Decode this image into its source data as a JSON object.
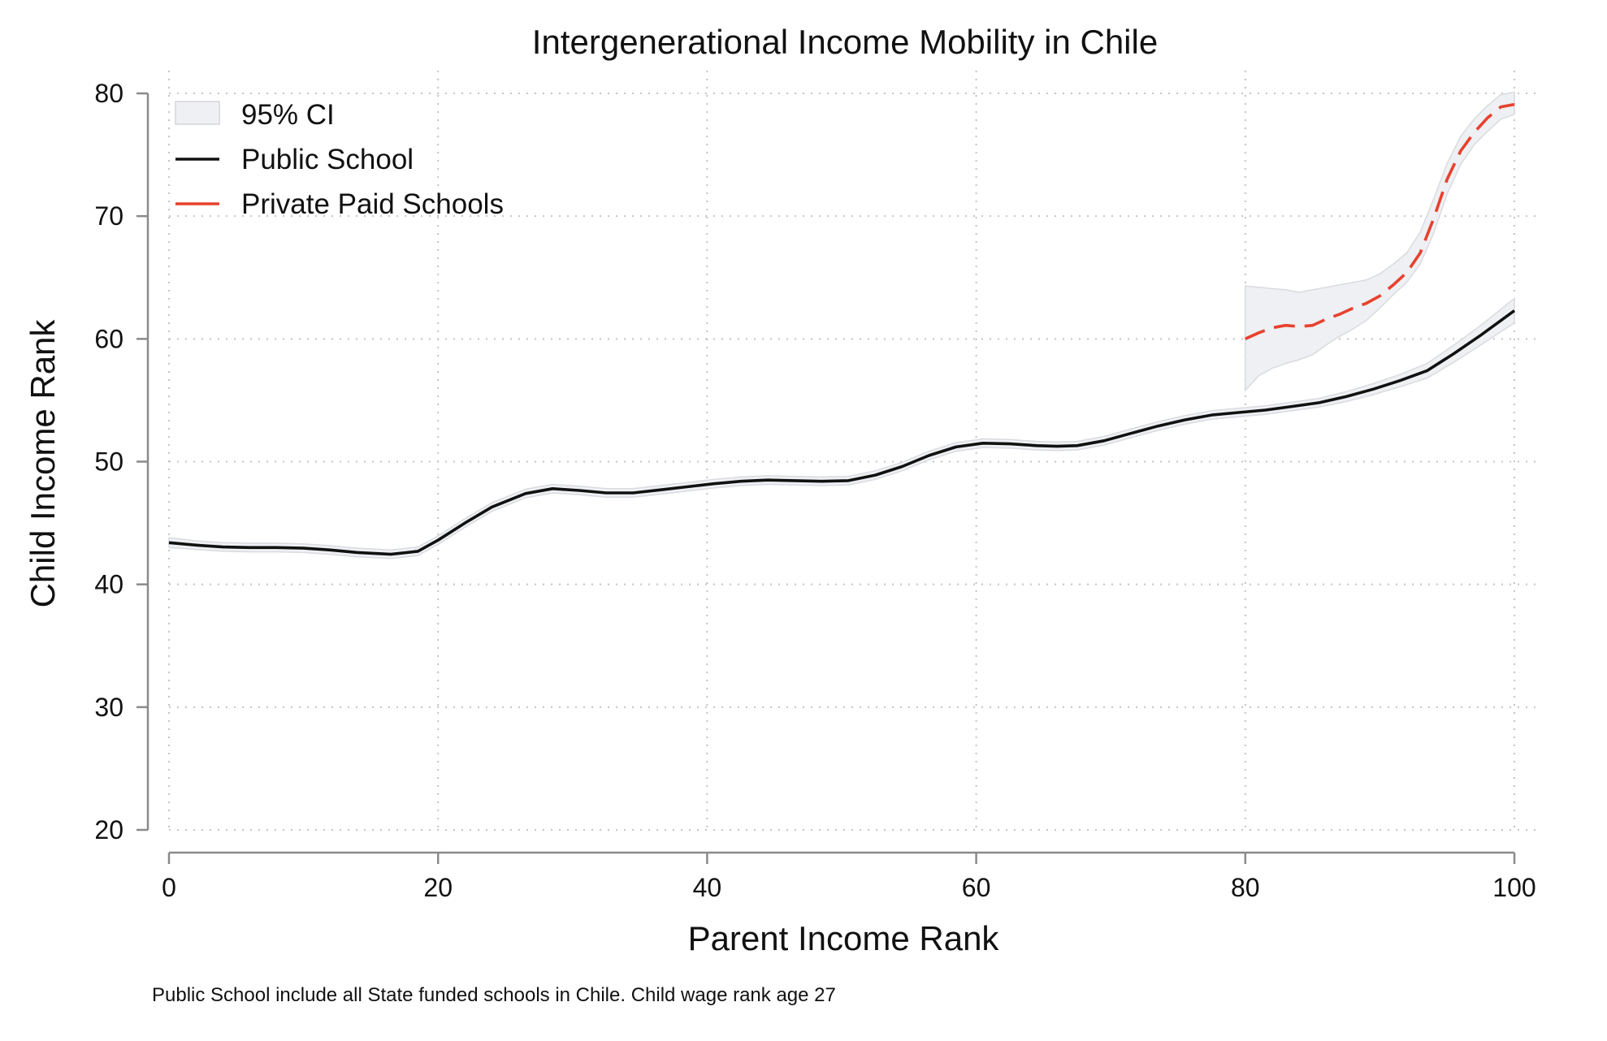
{
  "chart_data": {
    "type": "line",
    "title": "Intergenerational Income Mobility in Chile",
    "xlabel": "Parent Income Rank",
    "ylabel": "Child Income Rank",
    "note": "Public School include all State funded schools in Chile. Child wage rank age 27",
    "xlim": [
      0,
      100
    ],
    "ylim": [
      20,
      80
    ],
    "xticks": [
      0,
      20,
      40,
      60,
      80,
      100
    ],
    "yticks": [
      20,
      30,
      40,
      50,
      60,
      70,
      80
    ],
    "grid": true,
    "legend_position": "top-left",
    "legend": [
      {
        "label": "95% CI",
        "kind": "area",
        "color": "#eef0f3"
      },
      {
        "label": "Public School",
        "kind": "solid",
        "color": "#111111"
      },
      {
        "label": "Private Paid Schools",
        "kind": "dashed",
        "color": "#e8412e"
      }
    ],
    "series": [
      {
        "name": "Public School",
        "style": "solid",
        "color": "#111111",
        "x": [
          0,
          2,
          4,
          6,
          8,
          10,
          12,
          14,
          16.5,
          18.5,
          20,
          22,
          24,
          26.5,
          28.5,
          30.5,
          32.5,
          34.5,
          36.5,
          38.5,
          40.5,
          42.5,
          44.5,
          46.5,
          48.5,
          50.5,
          52.5,
          54.5,
          56.5,
          58.5,
          60.5,
          62.5,
          64.5,
          66,
          67.5,
          69.5,
          71.5,
          73.5,
          75.5,
          77.5,
          79.5,
          81.5,
          83.5,
          85.5,
          87.5,
          89.5,
          91.5,
          93.5,
          95.5,
          97.5,
          100
        ],
        "y": [
          43.4,
          43.2,
          43.05,
          43.0,
          43.0,
          42.95,
          42.8,
          42.6,
          42.45,
          42.7,
          43.6,
          45.0,
          46.3,
          47.4,
          47.8,
          47.65,
          47.45,
          47.45,
          47.7,
          47.95,
          48.2,
          48.4,
          48.5,
          48.45,
          48.4,
          48.45,
          48.9,
          49.6,
          50.5,
          51.2,
          51.5,
          51.45,
          51.3,
          51.25,
          51.3,
          51.7,
          52.3,
          52.9,
          53.4,
          53.8,
          54.0,
          54.2,
          54.5,
          54.8,
          55.3,
          55.9,
          56.6,
          57.4,
          58.8,
          60.3,
          62.3
        ],
        "ci_low": [
          43.0,
          42.85,
          42.7,
          42.65,
          42.65,
          42.6,
          42.45,
          42.25,
          42.1,
          42.35,
          43.25,
          44.65,
          45.95,
          47.05,
          47.45,
          47.3,
          47.1,
          47.1,
          47.35,
          47.6,
          47.85,
          48.05,
          48.15,
          48.1,
          48.05,
          48.1,
          48.55,
          49.25,
          50.15,
          50.85,
          51.15,
          51.1,
          50.95,
          50.9,
          50.95,
          51.35,
          51.95,
          52.55,
          53.05,
          53.45,
          53.65,
          53.85,
          54.15,
          54.45,
          54.9,
          55.45,
          56.1,
          56.8,
          58.1,
          59.5,
          61.3
        ],
        "ci_high": [
          43.8,
          43.55,
          43.4,
          43.35,
          43.35,
          43.3,
          43.15,
          42.95,
          42.8,
          43.05,
          43.95,
          45.35,
          46.65,
          47.75,
          48.15,
          48.0,
          47.8,
          47.8,
          48.05,
          48.3,
          48.55,
          48.75,
          48.85,
          48.8,
          48.75,
          48.8,
          49.25,
          49.95,
          50.85,
          51.55,
          51.85,
          51.8,
          51.65,
          51.6,
          51.65,
          52.05,
          52.65,
          53.25,
          53.75,
          54.15,
          54.35,
          54.55,
          54.85,
          55.15,
          55.7,
          56.35,
          57.1,
          58.0,
          59.5,
          61.1,
          63.3
        ]
      },
      {
        "name": "Private Paid Schools",
        "style": "dashed",
        "color": "#e8412e",
        "x": [
          80,
          81,
          82,
          83,
          84,
          85,
          86,
          87,
          88,
          89,
          90,
          91,
          92,
          93,
          94,
          95,
          96,
          97,
          98,
          99,
          100
        ],
        "y": [
          60.0,
          60.5,
          60.9,
          61.1,
          61.0,
          61.1,
          61.6,
          62.0,
          62.5,
          62.9,
          63.5,
          64.4,
          65.4,
          67.0,
          69.8,
          73.0,
          75.3,
          76.8,
          78.0,
          78.9,
          79.1
        ],
        "ci_low": [
          55.8,
          57.0,
          57.6,
          58.0,
          58.3,
          58.7,
          59.5,
          60.2,
          60.8,
          61.5,
          62.5,
          63.6,
          64.6,
          66.1,
          68.6,
          71.8,
          74.2,
          75.8,
          76.9,
          77.9,
          78.3
        ],
        "ci_high": [
          64.3,
          64.2,
          64.1,
          64.0,
          63.8,
          64.0,
          64.2,
          64.4,
          64.6,
          64.8,
          65.3,
          66.1,
          67.0,
          68.7,
          71.4,
          74.3,
          76.5,
          77.9,
          79.0,
          79.9,
          80.1
        ]
      }
    ]
  }
}
